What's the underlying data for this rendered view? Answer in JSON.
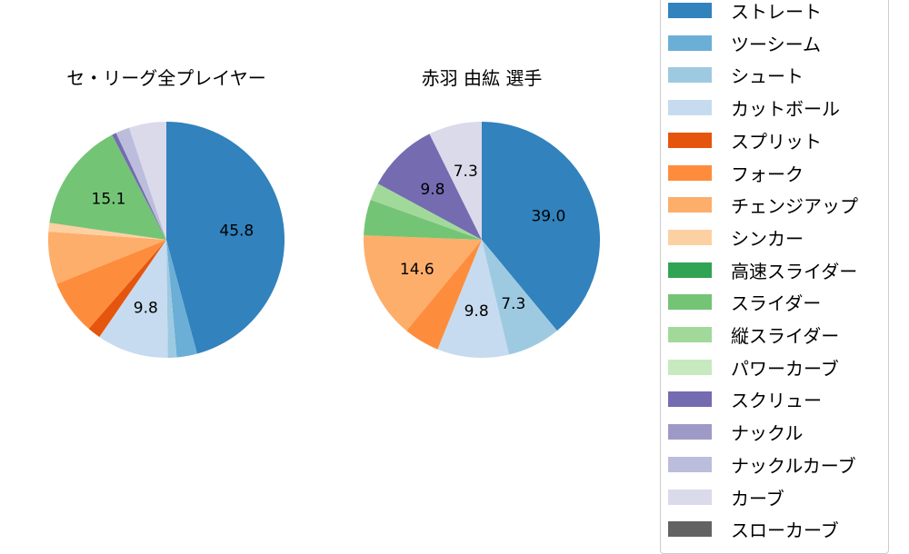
{
  "chart_data": [
    {
      "type": "pie",
      "title": "セ・リーグ全プレイヤー",
      "start_angle": 90,
      "direction": "clockwise",
      "categories": [
        "ストレート",
        "ツーシーム",
        "シュート",
        "カットボール",
        "スプリット",
        "フォーク",
        "チェンジアップ",
        "シンカー",
        "スライダー",
        "スクリュー",
        "ナックルカーブ",
        "カーブ"
      ],
      "values": [
        45.8,
        2.8,
        1.2,
        9.8,
        1.8,
        7.5,
        7.2,
        1.2,
        15.1,
        0.6,
        1.9,
        5.1
      ],
      "labels_shown": {
        "ストレート": "45.8",
        "カットボール": "9.8",
        "スライダー": "15.1"
      }
    },
    {
      "type": "pie",
      "title": "赤羽 由紘  選手",
      "start_angle": 90,
      "direction": "clockwise",
      "categories": [
        "ストレート",
        "シュート",
        "カットボール",
        "フォーク",
        "チェンジアップ",
        "スライダー",
        "縦スライダー",
        "スクリュー",
        "カーブ"
      ],
      "values": [
        39.0,
        7.3,
        9.8,
        4.9,
        14.6,
        4.9,
        2.4,
        9.8,
        7.3
      ],
      "labels_shown": {
        "ストレート": "39.0",
        "シュート": "7.3",
        "カットボール": "9.8",
        "チェンジアップ": "14.6",
        "スクリュー": "9.8",
        "カーブ": "7.3"
      }
    }
  ],
  "legend": {
    "position": "right",
    "items": [
      {
        "label": "ストレート",
        "color": "#3182bd"
      },
      {
        "label": "ツーシーム",
        "color": "#6baed6"
      },
      {
        "label": "シュート",
        "color": "#9ecae1"
      },
      {
        "label": "カットボール",
        "color": "#c6dbef"
      },
      {
        "label": "スプリット",
        "color": "#e6550d"
      },
      {
        "label": "フォーク",
        "color": "#fd8d3c"
      },
      {
        "label": "チェンジアップ",
        "color": "#fdae6b"
      },
      {
        "label": "シンカー",
        "color": "#fdd0a2"
      },
      {
        "label": "高速スライダー",
        "color": "#31a354"
      },
      {
        "label": "スライダー",
        "color": "#74c476"
      },
      {
        "label": "縦スライダー",
        "color": "#a1d99b"
      },
      {
        "label": "パワーカーブ",
        "color": "#c7e9c0"
      },
      {
        "label": "スクリュー",
        "color": "#756bb1"
      },
      {
        "label": "ナックル",
        "color": "#9e9ac8"
      },
      {
        "label": "ナックルカーブ",
        "color": "#bcbddc"
      },
      {
        "label": "カーブ",
        "color": "#dadaeb"
      },
      {
        "label": "スローカーブ",
        "color": "#636363"
      }
    ]
  }
}
